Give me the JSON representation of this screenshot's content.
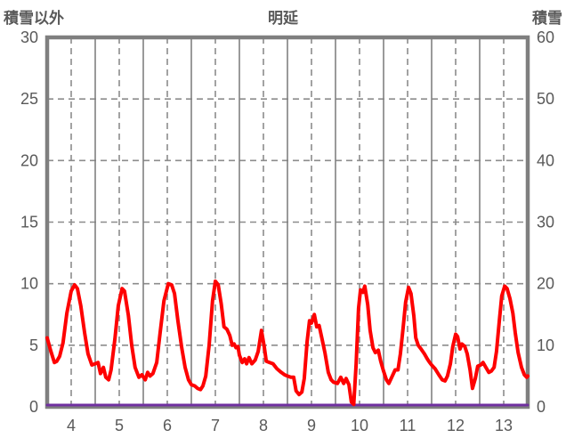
{
  "header": {
    "left_axis_label": "積雪以外",
    "title": "明延",
    "right_axis_label": "積雪"
  },
  "colors": {
    "text": "#595959",
    "frame": "#7f7f7f",
    "grid_solid": "#808080",
    "grid_dashed": "#8c8c8c",
    "series_red": "#fe0000",
    "series_purple": "#7030a0",
    "background": "#ffffff"
  },
  "chart_data": {
    "type": "line",
    "title": "明延",
    "left_axis": {
      "label": "積雪以外",
      "range": [
        0,
        30
      ],
      "ticks": [
        0,
        5,
        10,
        15,
        20,
        25,
        30
      ]
    },
    "right_axis": {
      "label": "積雪",
      "range": [
        0,
        60
      ],
      "ticks": [
        0,
        10,
        20,
        30,
        40,
        50,
        60
      ]
    },
    "x_axis": {
      "range": [
        4,
        14
      ],
      "ticks": [
        4,
        5,
        6,
        7,
        8,
        9,
        10,
        11,
        12,
        13
      ],
      "tick_pos_offset": 0.5,
      "solid_lines_at_day_boundaries": true,
      "dashed_lines_at_noon": true
    },
    "grid": {
      "horizontal_dashed_at": [
        5,
        10,
        15,
        20,
        25
      ]
    },
    "series": [
      {
        "name": "積雪以外",
        "axis": "left",
        "color_key": "series_red",
        "stroke_width": 4,
        "points": [
          [
            4.0,
            5.6
          ],
          [
            4.07,
            4.6
          ],
          [
            4.15,
            3.6
          ],
          [
            4.2,
            3.7
          ],
          [
            4.26,
            4.1
          ],
          [
            4.33,
            5.2
          ],
          [
            4.41,
            7.6
          ],
          [
            4.5,
            9.4
          ],
          [
            4.57,
            9.9
          ],
          [
            4.63,
            9.6
          ],
          [
            4.7,
            8.2
          ],
          [
            4.78,
            6.0
          ],
          [
            4.85,
            4.3
          ],
          [
            4.93,
            3.4
          ],
          [
            5.0,
            3.5
          ],
          [
            5.06,
            3.6
          ],
          [
            5.11,
            2.7
          ],
          [
            5.17,
            3.2
          ],
          [
            5.22,
            2.4
          ],
          [
            5.28,
            2.2
          ],
          [
            5.33,
            3.0
          ],
          [
            5.41,
            5.5
          ],
          [
            5.48,
            8.2
          ],
          [
            5.56,
            9.6
          ],
          [
            5.61,
            9.4
          ],
          [
            5.69,
            7.4
          ],
          [
            5.76,
            5.0
          ],
          [
            5.83,
            3.2
          ],
          [
            5.91,
            2.4
          ],
          [
            5.97,
            2.6
          ],
          [
            6.04,
            2.2
          ],
          [
            6.09,
            2.8
          ],
          [
            6.14,
            2.5
          ],
          [
            6.2,
            2.7
          ],
          [
            6.28,
            3.6
          ],
          [
            6.35,
            6.0
          ],
          [
            6.43,
            8.6
          ],
          [
            6.52,
            10.0
          ],
          [
            6.59,
            9.9
          ],
          [
            6.65,
            9.2
          ],
          [
            6.72,
            7.0
          ],
          [
            6.8,
            4.8
          ],
          [
            6.87,
            3.2
          ],
          [
            6.94,
            2.2
          ],
          [
            7.0,
            1.8
          ],
          [
            7.07,
            1.7
          ],
          [
            7.13,
            1.5
          ],
          [
            7.19,
            1.4
          ],
          [
            7.24,
            1.7
          ],
          [
            7.3,
            2.5
          ],
          [
            7.37,
            5.0
          ],
          [
            7.44,
            8.6
          ],
          [
            7.5,
            10.2
          ],
          [
            7.56,
            9.9
          ],
          [
            7.62,
            8.4
          ],
          [
            7.68,
            6.5
          ],
          [
            7.74,
            6.3
          ],
          [
            7.8,
            5.8
          ],
          [
            7.85,
            5.0
          ],
          [
            7.89,
            5.1
          ],
          [
            7.93,
            4.8
          ],
          [
            7.97,
            4.9
          ],
          [
            8.0,
            4.2
          ],
          [
            8.06,
            3.6
          ],
          [
            8.11,
            3.9
          ],
          [
            8.15,
            3.5
          ],
          [
            8.2,
            4.0
          ],
          [
            8.26,
            3.5
          ],
          [
            8.33,
            3.8
          ],
          [
            8.39,
            4.5
          ],
          [
            8.46,
            6.2
          ],
          [
            8.52,
            4.8
          ],
          [
            8.56,
            3.7
          ],
          [
            8.63,
            3.6
          ],
          [
            8.7,
            3.5
          ],
          [
            8.78,
            3.1
          ],
          [
            8.87,
            2.8
          ],
          [
            8.94,
            2.6
          ],
          [
            9.0,
            2.5
          ],
          [
            9.07,
            2.4
          ],
          [
            9.13,
            2.4
          ],
          [
            9.18,
            1.3
          ],
          [
            9.24,
            1.0
          ],
          [
            9.3,
            1.2
          ],
          [
            9.35,
            2.3
          ],
          [
            9.41,
            5.3
          ],
          [
            9.46,
            7.0
          ],
          [
            9.5,
            6.8
          ],
          [
            9.56,
            7.5
          ],
          [
            9.61,
            6.5
          ],
          [
            9.66,
            6.6
          ],
          [
            9.72,
            5.5
          ],
          [
            9.78,
            4.4
          ],
          [
            9.85,
            2.8
          ],
          [
            9.91,
            2.2
          ],
          [
            9.96,
            2.0
          ],
          [
            10.04,
            1.9
          ],
          [
            10.11,
            2.4
          ],
          [
            10.17,
            1.9
          ],
          [
            10.22,
            2.3
          ],
          [
            10.28,
            1.8
          ],
          [
            10.33,
            0.4
          ],
          [
            10.38,
            0.2
          ],
          [
            10.43,
            3.5
          ],
          [
            10.48,
            8.0
          ],
          [
            10.52,
            9.5
          ],
          [
            10.57,
            9.3
          ],
          [
            10.61,
            9.8
          ],
          [
            10.67,
            8.3
          ],
          [
            10.72,
            6.2
          ],
          [
            10.78,
            4.8
          ],
          [
            10.83,
            4.4
          ],
          [
            10.89,
            4.6
          ],
          [
            10.94,
            3.7
          ],
          [
            11.0,
            2.9
          ],
          [
            11.06,
            2.2
          ],
          [
            11.11,
            1.9
          ],
          [
            11.17,
            2.4
          ],
          [
            11.24,
            3.0
          ],
          [
            11.3,
            3.0
          ],
          [
            11.35,
            4.3
          ],
          [
            11.41,
            6.5
          ],
          [
            11.46,
            8.5
          ],
          [
            11.52,
            9.7
          ],
          [
            11.57,
            9.2
          ],
          [
            11.63,
            7.4
          ],
          [
            11.67,
            5.6
          ],
          [
            11.72,
            5.0
          ],
          [
            11.78,
            4.7
          ],
          [
            11.85,
            4.3
          ],
          [
            11.91,
            3.9
          ],
          [
            11.96,
            3.6
          ],
          [
            12.0,
            3.4
          ],
          [
            12.07,
            3.1
          ],
          [
            12.15,
            2.6
          ],
          [
            12.22,
            2.2
          ],
          [
            12.28,
            2.1
          ],
          [
            12.33,
            2.5
          ],
          [
            12.39,
            3.5
          ],
          [
            12.44,
            4.9
          ],
          [
            12.5,
            5.9
          ],
          [
            12.54,
            5.7
          ],
          [
            12.59,
            4.7
          ],
          [
            12.63,
            5.1
          ],
          [
            12.69,
            4.9
          ],
          [
            12.74,
            4.3
          ],
          [
            12.8,
            3.0
          ],
          [
            12.85,
            1.5
          ],
          [
            12.91,
            2.3
          ],
          [
            12.96,
            3.3
          ],
          [
            13.02,
            3.4
          ],
          [
            13.07,
            3.6
          ],
          [
            13.13,
            3.2
          ],
          [
            13.19,
            2.8
          ],
          [
            13.24,
            2.9
          ],
          [
            13.3,
            3.2
          ],
          [
            13.35,
            4.5
          ],
          [
            13.41,
            7.0
          ],
          [
            13.46,
            9.0
          ],
          [
            13.52,
            9.8
          ],
          [
            13.57,
            9.6
          ],
          [
            13.63,
            8.8
          ],
          [
            13.69,
            7.6
          ],
          [
            13.74,
            6.0
          ],
          [
            13.8,
            4.4
          ],
          [
            13.87,
            3.2
          ],
          [
            13.93,
            2.6
          ],
          [
            13.98,
            2.4
          ],
          [
            14.0,
            2.5
          ]
        ]
      },
      {
        "name": "積雪",
        "axis": "right",
        "color_key": "series_purple",
        "stroke_width": 3,
        "points": [
          [
            4.0,
            0
          ],
          [
            14.0,
            0
          ]
        ]
      }
    ]
  }
}
